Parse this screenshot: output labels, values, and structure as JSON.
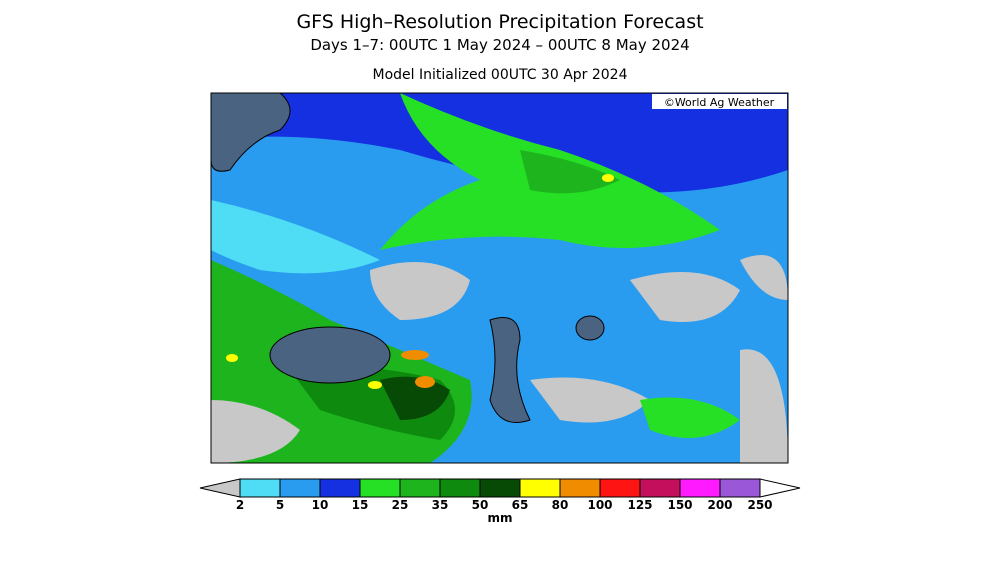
{
  "header": {
    "title": "GFS High–Resolution Precipitation Forecast",
    "subtitle": "Days 1–7: 00UTC 1 May 2024 – 00UTC 8 May 2024",
    "initialized": "Model Initialized 00UTC 30 Apr 2024"
  },
  "map": {
    "credit": "©World Ag Weather"
  },
  "legend": {
    "ticks": [
      "2",
      "5",
      "10",
      "15",
      "25",
      "35",
      "50",
      "65",
      "80",
      "100",
      "125",
      "150",
      "200",
      "250"
    ],
    "colors": [
      "#c8c8c8",
      "#4fdcf5",
      "#2a9cf0",
      "#1430e0",
      "#26e026",
      "#1db41d",
      "#0e8a0e",
      "#064a06",
      "#ffff00",
      "#f08c00",
      "#ff1414",
      "#c4105c",
      "#ff1aff",
      "#9a58d8",
      "#ffffff"
    ],
    "unit": "mm"
  }
}
